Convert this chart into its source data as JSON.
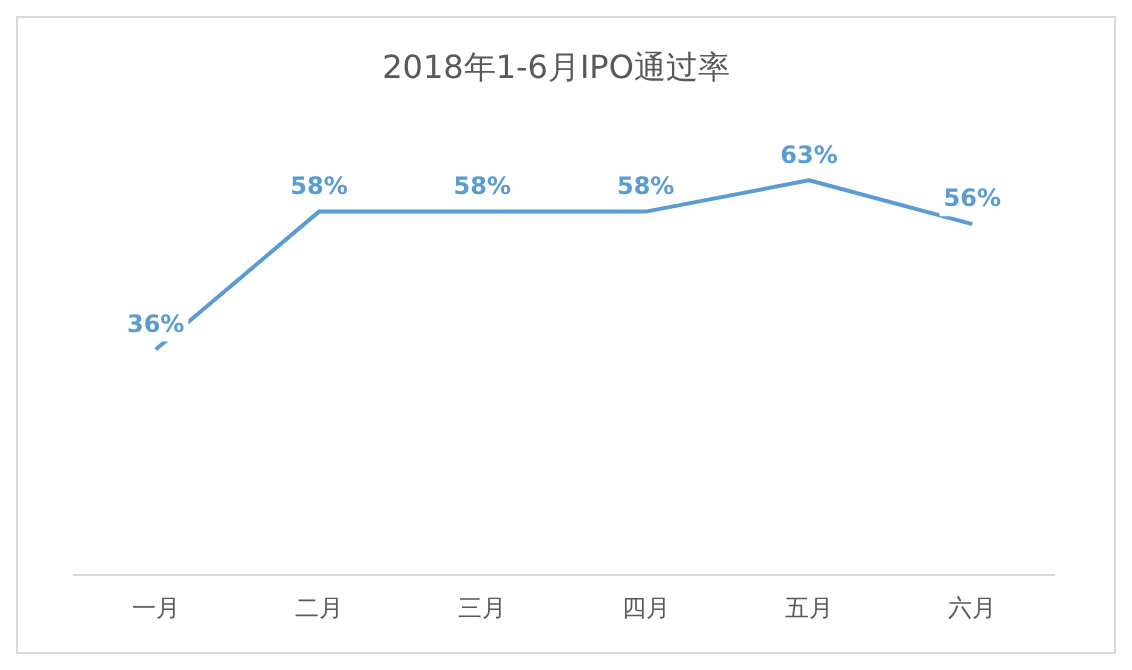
{
  "chart_data": {
    "type": "line",
    "title": "2018年1-6月IPO通过率",
    "categories": [
      "一月",
      "二月",
      "三月",
      "四月",
      "五月",
      "六月"
    ],
    "series": [
      {
        "color": "#5b9bd5",
        "values": [
          36,
          58,
          58,
          58,
          63,
          56
        ],
        "value_labels": [
          "36%",
          "58%",
          "58%",
          "58%",
          "63%",
          "56%"
        ]
      }
    ],
    "grid": false,
    "legend": false,
    "marker": "none",
    "line_style": "solid",
    "tick_labels": "x"
  }
}
